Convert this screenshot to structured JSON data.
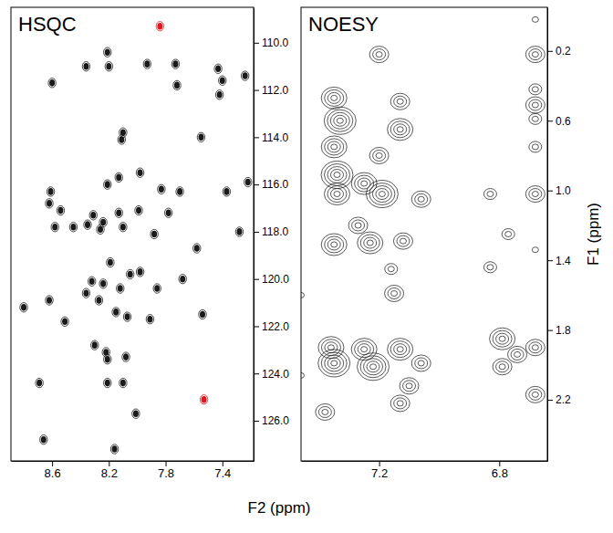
{
  "chart_data": [
    {
      "type": "scatter",
      "title": "HSQC",
      "xlabel": "F2 (ppm)",
      "x": [
        7.84,
        8.6,
        8.36,
        8.21,
        8.2,
        7.93,
        7.72,
        7.73,
        7.43,
        7.4,
        7.42,
        7.24,
        8.1,
        8.11,
        7.55,
        7.98,
        8.13,
        8.21,
        7.83,
        7.7,
        7.22,
        8.61,
        8.62,
        7.37,
        8.54,
        8.31,
        8.24,
        8.13,
        7.99,
        7.78,
        8.58,
        8.45,
        8.35,
        8.26,
        8.1,
        7.88,
        7.58,
        7.28,
        8.19,
        8.05,
        7.98,
        8.32,
        8.24,
        8.12,
        8.36,
        8.27,
        7.86,
        7.68,
        8.62,
        8.8,
        8.15,
        8.07,
        7.91,
        7.54,
        8.51,
        8.3,
        8.22,
        8.21,
        8.08,
        8.69,
        8.21,
        8.1,
        8.01,
        8.66,
        8.16,
        7.53
      ],
      "y": [
        109.3,
        111.7,
        111.0,
        110.4,
        111.0,
        110.9,
        111.8,
        110.9,
        111.1,
        111.6,
        112.2,
        111.4,
        113.8,
        114.1,
        114.0,
        115.5,
        115.7,
        116.0,
        116.2,
        116.3,
        115.9,
        116.3,
        116.8,
        116.3,
        117.1,
        117.3,
        117.6,
        117.2,
        117.1,
        117.2,
        117.8,
        117.8,
        117.7,
        117.9,
        117.8,
        118.1,
        118.7,
        118.0,
        119.3,
        119.8,
        119.7,
        120.1,
        120.2,
        120.4,
        120.6,
        120.9,
        120.4,
        120.0,
        120.9,
        121.2,
        121.4,
        121.6,
        121.7,
        121.5,
        121.8,
        122.8,
        123.1,
        123.4,
        123.3,
        124.4,
        124.4,
        124.4,
        125.7,
        126.8,
        127.2,
        125.1
      ],
      "colors": [
        "#e8141c",
        "#1a1a1a",
        "#1a1a1a",
        "#1a1a1a",
        "#1a1a1a",
        "#1a1a1a",
        "#1a1a1a",
        "#1a1a1a",
        "#1a1a1a",
        "#1a1a1a",
        "#1a1a1a",
        "#1a1a1a",
        "#1a1a1a",
        "#1a1a1a",
        "#1a1a1a",
        "#1a1a1a",
        "#1a1a1a",
        "#1a1a1a",
        "#1a1a1a",
        "#1a1a1a",
        "#1a1a1a",
        "#1a1a1a",
        "#1a1a1a",
        "#1a1a1a",
        "#1a1a1a",
        "#1a1a1a",
        "#1a1a1a",
        "#1a1a1a",
        "#1a1a1a",
        "#1a1a1a",
        "#1a1a1a",
        "#1a1a1a",
        "#1a1a1a",
        "#1a1a1a",
        "#1a1a1a",
        "#1a1a1a",
        "#1a1a1a",
        "#1a1a1a",
        "#1a1a1a",
        "#1a1a1a",
        "#1a1a1a",
        "#1a1a1a",
        "#1a1a1a",
        "#1a1a1a",
        "#1a1a1a",
        "#1a1a1a",
        "#1a1a1a",
        "#1a1a1a",
        "#1a1a1a",
        "#1a1a1a",
        "#1a1a1a",
        "#1a1a1a",
        "#1a1a1a",
        "#1a1a1a",
        "#1a1a1a",
        "#1a1a1a",
        "#1a1a1a",
        "#1a1a1a",
        "#1a1a1a",
        "#1a1a1a",
        "#1a1a1a",
        "#1a1a1a",
        "#1a1a1a",
        "#1a1a1a",
        "#1a1a1a",
        "#e8141c"
      ],
      "xlim": [
        8.89,
        7.18
      ],
      "ylim": [
        127.7,
        108.5
      ],
      "xticks": [
        8.6,
        8.2,
        7.8,
        7.4
      ],
      "yticks": [
        {
          "value": 110,
          "label": "110.0"
        },
        {
          "value": 112,
          "label": "112.0"
        },
        {
          "value": 114,
          "label": "114.0"
        },
        {
          "value": 116,
          "label": "116.0"
        },
        {
          "value": 118,
          "label": "118.0"
        },
        {
          "value": 120,
          "label": "120.0"
        },
        {
          "value": 122,
          "label": "122.0"
        },
        {
          "value": 124,
          "label": "124.0"
        },
        {
          "value": 126,
          "label": "126.0"
        }
      ]
    },
    {
      "type": "contour",
      "title": "NOESY",
      "ylabel": "F1 (ppm)",
      "color": "#111111",
      "x": [
        7.2,
        6.68,
        6.68,
        6.68,
        6.68,
        6.68,
        7.35,
        7.33,
        7.35,
        7.34,
        7.34,
        7.25,
        7.19,
        7.13,
        7.13,
        7.2,
        6.83,
        6.68,
        6.68,
        6.77,
        6.68,
        7.35,
        7.23,
        7.12,
        7.15,
        6.83,
        7.36,
        7.35,
        7.25,
        7.13,
        7.06,
        7.22,
        7.1,
        6.79,
        6.74,
        6.68,
        6.68,
        6.79,
        7.38,
        7.13,
        7.46,
        7.46,
        7.16,
        7.27,
        7.06
      ],
      "y": [
        0.22,
        0.22,
        0.02,
        0.42,
        0.51,
        0.59,
        0.47,
        0.6,
        0.75,
        0.91,
        1.02,
        0.96,
        1.02,
        0.49,
        0.65,
        0.8,
        1.02,
        1.02,
        0.75,
        1.25,
        1.34,
        1.31,
        1.3,
        1.29,
        1.59,
        1.44,
        1.9,
        1.99,
        1.91,
        1.91,
        1.99,
        2.01,
        2.12,
        1.85,
        1.94,
        1.9,
        2.17,
        2.01,
        2.27,
        2.22,
        1.6,
        2.06,
        1.45,
        1.2,
        1.05
      ],
      "intensity": [
        3,
        3,
        1,
        2,
        3,
        2,
        4,
        5,
        4,
        5,
        4,
        4,
        5,
        3,
        4,
        3,
        2,
        3,
        2,
        2,
        1,
        4,
        4,
        3,
        3,
        2,
        4,
        5,
        4,
        4,
        3,
        5,
        3,
        4,
        3,
        3,
        3,
        3,
        3,
        3,
        1,
        1,
        2,
        3,
        3
      ],
      "xlim": [
        7.46,
        6.64
      ],
      "ylim": [
        2.55,
        -0.05
      ],
      "xticks": [
        7.2,
        6.8
      ],
      "yticks": [
        0.2,
        0.6,
        {
          "value": 1,
          "label": "1.0"
        },
        1.4,
        1.8,
        2.2
      ]
    }
  ]
}
